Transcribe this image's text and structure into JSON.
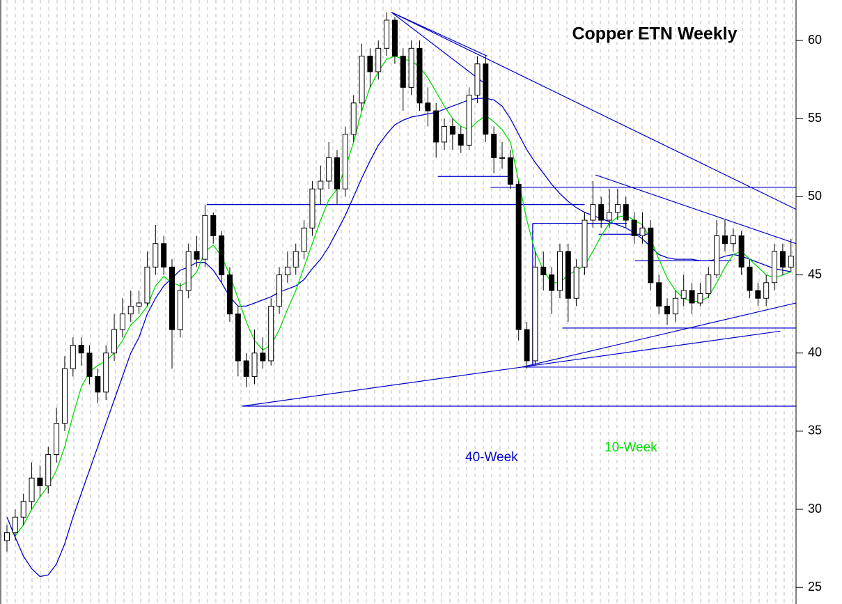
{
  "chart_data": {
    "type": "candlestick",
    "title": "Copper ETN Weekly",
    "ylim": [
      23.94,
      62.59
    ],
    "yticks": [
      25,
      30,
      35,
      40,
      45,
      50,
      55,
      60
    ],
    "grid": true,
    "up_color": "#ffffff",
    "down_color": "#000000",
    "candles": [
      [
        28,
        29,
        27.3,
        28.5
      ],
      [
        28.5,
        30,
        28,
        29.5
      ],
      [
        29.5,
        31,
        29,
        30.5
      ],
      [
        30.5,
        33,
        30,
        32
      ],
      [
        32,
        32.8,
        30.8,
        31.5
      ],
      [
        31.5,
        34,
        31,
        33.5
      ],
      [
        33.5,
        36.5,
        33,
        35.5
      ],
      [
        35.5,
        39.8,
        35,
        39
      ],
      [
        39,
        41,
        38.5,
        40.5
      ],
      [
        40.5,
        41,
        39.2,
        40
      ],
      [
        40,
        40.5,
        38,
        38.5
      ],
      [
        38.5,
        39,
        36.8,
        37.5
      ],
      [
        37.5,
        40.5,
        37,
        40
      ],
      [
        40,
        42.5,
        39.5,
        41.5
      ],
      [
        41.5,
        43.5,
        41,
        42.5
      ],
      [
        42.5,
        44,
        42,
        43
      ],
      [
        43,
        44,
        42.5,
        43.2
      ],
      [
        43.2,
        46.5,
        43,
        45.5
      ],
      [
        45.5,
        48.2,
        45,
        47
      ],
      [
        47,
        47.5,
        45,
        45.5
      ],
      [
        45.5,
        46,
        39,
        41.5
      ],
      [
        41.5,
        44.5,
        41,
        44
      ],
      [
        44,
        47,
        43.5,
        46.5
      ],
      [
        46.5,
        47.5,
        45.5,
        46
      ],
      [
        46,
        49.5,
        45.5,
        48.8
      ],
      [
        48.8,
        49,
        47,
        47.5
      ],
      [
        47.5,
        47.8,
        44.5,
        45
      ],
      [
        45,
        45.5,
        42,
        42.5
      ],
      [
        42.5,
        43,
        38.5,
        39.5
      ],
      [
        39.5,
        40,
        37.8,
        38.5
      ],
      [
        38.5,
        41.5,
        38,
        40
      ],
      [
        40,
        41,
        39,
        39.5
      ],
      [
        39.5,
        43.5,
        39.2,
        43
      ],
      [
        43,
        45.5,
        42.5,
        45
      ],
      [
        45,
        46.5,
        44.5,
        45.5
      ],
      [
        45.5,
        47,
        45,
        46.5
      ],
      [
        46.5,
        48.5,
        46,
        48
      ],
      [
        48,
        51,
        47.5,
        50.5
      ],
      [
        50.5,
        52,
        49.5,
        51
      ],
      [
        51,
        53.5,
        50.5,
        52.5
      ],
      [
        52.5,
        53,
        49.5,
        50.5
      ],
      [
        50.5,
        54.5,
        50,
        54
      ],
      [
        54,
        56.5,
        53.5,
        56
      ],
      [
        56,
        59.8,
        55.5,
        59
      ],
      [
        59,
        59.5,
        57,
        58
      ],
      [
        58,
        60,
        57.5,
        59.5
      ],
      [
        59.5,
        61.8,
        59,
        61.3
      ],
      [
        61.3,
        61.5,
        58.5,
        59
      ],
      [
        59,
        59.5,
        55.5,
        57
      ],
      [
        57,
        60,
        56.5,
        59.5
      ],
      [
        59.5,
        60,
        55.5,
        56
      ],
      [
        56,
        57,
        54.5,
        55.5
      ],
      [
        55.5,
        56,
        52.5,
        53.5
      ],
      [
        53.5,
        55,
        53,
        54.5
      ],
      [
        54.5,
        55,
        53,
        54
      ],
      [
        54,
        54.5,
        52.8,
        53.3
      ],
      [
        53.3,
        57,
        53,
        56.5
      ],
      [
        56.5,
        59,
        56,
        58.5
      ],
      [
        58.5,
        59,
        53.5,
        54
      ],
      [
        54,
        54.5,
        51.5,
        52.5
      ],
      [
        52.5,
        53.5,
        51.8,
        52.5
      ],
      [
        52.5,
        53,
        50.5,
        50.8
      ],
      [
        50.8,
        51,
        40.8,
        41.5
      ],
      [
        41.5,
        42,
        39,
        39.5
      ],
      [
        39.5,
        46.5,
        39.2,
        45.5
      ],
      [
        45.5,
        46.5,
        44,
        45
      ],
      [
        45,
        45.5,
        42.5,
        44
      ],
      [
        44,
        47,
        43.5,
        46.5
      ],
      [
        46.5,
        47,
        42,
        43.5
      ],
      [
        43.5,
        46,
        43,
        45.5
      ],
      [
        45.5,
        49,
        45,
        48.5
      ],
      [
        48.5,
        51,
        48,
        49.5
      ],
      [
        49.5,
        50,
        48,
        48.5
      ],
      [
        48.5,
        50.5,
        48,
        49
      ],
      [
        49,
        50.5,
        48.5,
        49.5
      ],
      [
        49.5,
        50,
        48,
        48.5
      ],
      [
        48.5,
        49,
        47,
        47.5
      ],
      [
        47.5,
        49,
        47,
        48
      ],
      [
        48,
        48.5,
        44,
        44.5
      ],
      [
        44.5,
        45,
        42.5,
        43
      ],
      [
        43,
        43.5,
        41.8,
        42.5
      ],
      [
        42.5,
        44,
        42,
        43.5
      ],
      [
        43.5,
        45,
        43,
        44
      ],
      [
        44,
        44.5,
        42.5,
        43.2
      ],
      [
        43.2,
        44.5,
        43,
        43.8
      ],
      [
        43.8,
        45.5,
        43.5,
        45
      ],
      [
        45,
        48.5,
        44.8,
        47.5
      ],
      [
        47.5,
        48.5,
        46.5,
        47
      ],
      [
        47,
        48,
        46.5,
        47.5
      ],
      [
        47.5,
        47.8,
        45,
        45.5
      ],
      [
        45.5,
        46,
        43.5,
        44
      ],
      [
        44,
        44.5,
        43,
        43.5
      ],
      [
        43.5,
        45,
        43,
        44.5
      ],
      [
        44.5,
        47,
        44,
        46.5
      ],
      [
        46.5,
        47,
        45,
        45.5
      ],
      [
        45.5,
        47.3,
        45.2,
        46.2
      ]
    ],
    "series": [
      {
        "name": "40-Week",
        "color": "#0000cc",
        "values": [
          29.5,
          28.2,
          27,
          26.2,
          25.7,
          25.8,
          26.5,
          27.8,
          29.5,
          31,
          32.5,
          34,
          35.5,
          37,
          38.5,
          40,
          41,
          42.5,
          43.5,
          44.3,
          44.8,
          45.3,
          45.5,
          45.8,
          45.8,
          45.3,
          44.5,
          43.6,
          43,
          43,
          43.2,
          43.4,
          43.6,
          43.9,
          44.1,
          44.3,
          44.7,
          45.4,
          46,
          46.8,
          47.8,
          48.8,
          50,
          51.2,
          52.3,
          53.3,
          54,
          54.6,
          54.9,
          55.1,
          55.2,
          55.3,
          55.4,
          55.6,
          55.8,
          56,
          56.2,
          56.3,
          56.3,
          56.2,
          55.8,
          55,
          54,
          53,
          52.2,
          51.5,
          50.8,
          50.2,
          49.7,
          49.3,
          49,
          48.8,
          48.6,
          48.4,
          48.2,
          48,
          47.7,
          47.3,
          46.8,
          46.3,
          46.1,
          46,
          46,
          46,
          45.9,
          45.9,
          46,
          46.2,
          46.3,
          46.2,
          46,
          45.8,
          45.6,
          45.4,
          45.3,
          45.2
        ]
      },
      {
        "name": "10-Week",
        "color": "#00dd00",
        "values": [
          null,
          28.3,
          29,
          30,
          30.8,
          31.5,
          32.5,
          34,
          36,
          37.8,
          38.8,
          39.2,
          39.5,
          40,
          40.8,
          41.8,
          42.3,
          43,
          44.3,
          44.9,
          44.5,
          44.3,
          44.6,
          45.2,
          46.5,
          46.9,
          46.2,
          45,
          43.5,
          42,
          40.8,
          40.2,
          40.5,
          41.5,
          42.8,
          44,
          45.5,
          47,
          48.5,
          49.8,
          50.5,
          51.8,
          53.5,
          55.5,
          57,
          58,
          58.8,
          59,
          58.8,
          58.7,
          58.3,
          57.6,
          56.7,
          55.8,
          55,
          54.5,
          54.3,
          54.8,
          55.2,
          54.8,
          54.3,
          53.5,
          51,
          48.5,
          46.5,
          45.3,
          44.5,
          44.5,
          45,
          45.3,
          45.6,
          46.5,
          47.5,
          48.3,
          48.7,
          48.8,
          48.5,
          48.2,
          47.3,
          46,
          44.8,
          44,
          43.5,
          43.3,
          43.3,
          43.6,
          44.5,
          45.5,
          46.3,
          46.5,
          46,
          45.5,
          45,
          44.8,
          45,
          45.2
        ]
      }
    ],
    "trendline_color": "#0000cc",
    "trendlines": [
      {
        "x": [
          46.6,
          95.6
        ],
        "y": [
          61.8,
          49.2
        ]
      },
      {
        "x": [
          46.6,
          58.2
        ],
        "y": [
          61.8,
          59.0
        ]
      },
      {
        "x": [
          46.6,
          58.0
        ],
        "y": [
          61.8,
          57.2
        ]
      },
      {
        "x": [
          24.2,
          70.0
        ],
        "y": [
          49.5,
          49.5
        ]
      },
      {
        "x": [
          58.6,
          95.6
        ],
        "y": [
          50.6,
          50.6
        ]
      },
      {
        "x": [
          52.2,
          61.2
        ],
        "y": [
          51.3,
          51.3
        ]
      },
      {
        "x": [
          28.5,
          95.6
        ],
        "y": [
          36.6,
          36.6
        ]
      },
      {
        "x": [
          28.5,
          62.4
        ],
        "y": [
          36.6,
          39.1
        ]
      },
      {
        "x": [
          62.4,
          95.6
        ],
        "y": [
          39.1,
          39.1
        ]
      },
      {
        "x": [
          62.4,
          95.6
        ],
        "y": [
          39.1,
          43.2
        ]
      },
      {
        "x": [
          62.4,
          93.7
        ],
        "y": [
          39.1,
          41.4
        ]
      },
      {
        "x": [
          67.3,
          95.6
        ],
        "y": [
          41.6,
          41.6
        ]
      },
      {
        "x": [
          71.3,
          95.6
        ],
        "y": [
          51.4,
          47.0
        ]
      },
      {
        "x": [
          63.7,
          75.1
        ],
        "y": [
          48.3,
          48.3
        ]
      },
      {
        "x": [
          63.7,
          63.7
        ],
        "y": [
          39.2,
          48.3
        ]
      },
      {
        "x": [
          71.7,
          77.6
        ],
        "y": [
          47.6,
          47.6
        ]
      },
      {
        "x": [
          76.1,
          87.8
        ],
        "y": [
          45.9,
          45.9
        ]
      }
    ]
  }
}
